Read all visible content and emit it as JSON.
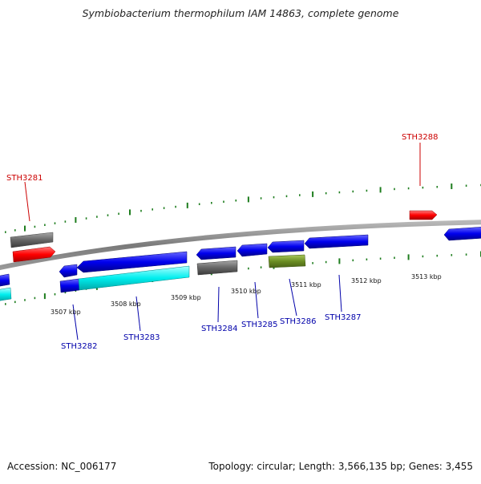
{
  "title": "Symbiobacterium thermophilum IAM 14863, complete genome",
  "footer": {
    "accession": "Accession: NC_006177",
    "stats": "Topology: circular; Length: 3,566,135 bp; Genes: 3,455"
  },
  "colors": {
    "backbone": "#808080",
    "tick": "#1e7d1e",
    "forward_label": "#cc0000",
    "reverse_label": "#0000aa",
    "gene_red": "#ff0000",
    "gene_blue": "#0000ee",
    "gene_cyan": "#00e5e5",
    "gene_gray": "#666666",
    "gene_olive": "#6b8e23"
  },
  "scale_labels": [
    "3507 kbp",
    "3508 kbp",
    "3509 kbp",
    "3510 kbp",
    "3511 kbp",
    "3512 kbp",
    "3513 kbp"
  ],
  "gene_labels": {
    "forward": [
      "STH3281",
      "STH3288"
    ],
    "reverse": [
      "STH3282",
      "STH3283",
      "STH3284",
      "STH3285",
      "STH3286",
      "STH3287"
    ]
  }
}
